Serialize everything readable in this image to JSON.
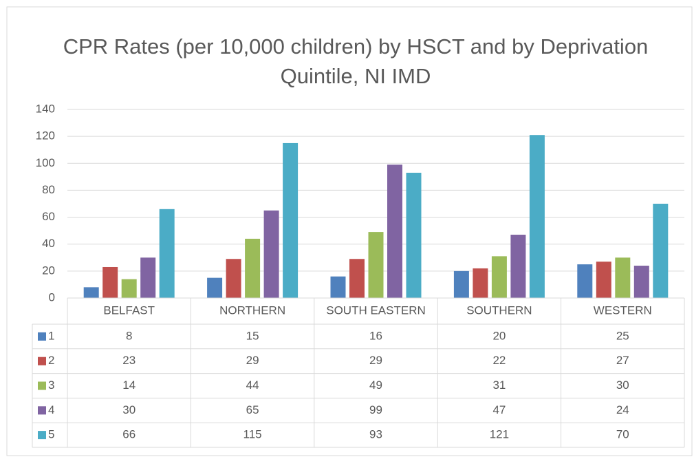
{
  "chart_data": {
    "type": "bar",
    "title": "CPR Rates (per 10,000 children) by HSCT and by Deprivation Quintile, NI IMD",
    "categories": [
      "BELFAST",
      "NORTHERN",
      "SOUTH EASTERN",
      "SOUTHERN",
      "WESTERN"
    ],
    "series": [
      {
        "name": "1",
        "color": "#4f81bd",
        "values": [
          8,
          15,
          16,
          20,
          25
        ]
      },
      {
        "name": "2",
        "color": "#c0504d",
        "values": [
          23,
          29,
          29,
          22,
          27
        ]
      },
      {
        "name": "3",
        "color": "#9bbb59",
        "values": [
          14,
          44,
          49,
          31,
          30
        ]
      },
      {
        "name": "4",
        "color": "#8064a2",
        "values": [
          30,
          65,
          99,
          47,
          24
        ]
      },
      {
        "name": "5",
        "color": "#4bacc6",
        "values": [
          66,
          115,
          93,
          121,
          70
        ]
      }
    ],
    "ylim": [
      0,
      140
    ],
    "yticks": [
      0,
      20,
      40,
      60,
      80,
      100,
      120,
      140
    ],
    "grid": true
  }
}
